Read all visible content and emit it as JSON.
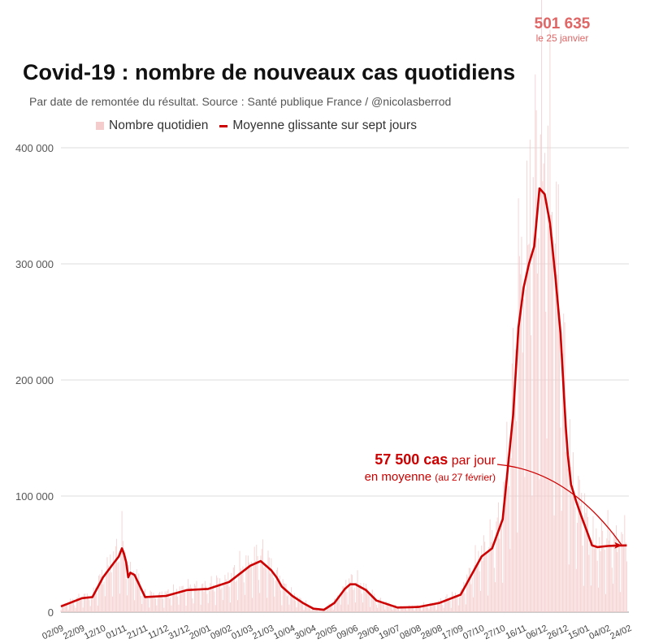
{
  "chart_data": {
    "type": "bar+line",
    "title": "Covid-19 : nombre de nouveaux cas quotidiens",
    "subtitle": "Par date de remontée du résultat. Source : Santé publique France / @nicolasberrod",
    "legend": {
      "position": "top",
      "items": [
        {
          "label": "Nombre quotidien",
          "color": "#f4cccc",
          "kind": "bar"
        },
        {
          "label": "Moyenne glissante sur sept jours",
          "color": "#cc0000",
          "kind": "line"
        }
      ]
    },
    "grid": true,
    "y_axis": {
      "ylim": [
        0,
        420000
      ],
      "ticks": [
        0,
        100000,
        200000,
        300000,
        400000
      ],
      "tick_labels": [
        "0",
        "100 000",
        "200 000",
        "300 000",
        "400 000"
      ]
    },
    "x_axis": {
      "tick_labels": [
        "02/09",
        "22/09",
        "12/10",
        "01/11",
        "21/11",
        "11/12",
        "31/12",
        "20/01",
        "09/02",
        "01/03",
        "21/03",
        "10/04",
        "30/04",
        "20/05",
        "09/06",
        "29/06",
        "19/07",
        "08/08",
        "28/08",
        "17/09",
        "07/10",
        "27/10",
        "16/11",
        "06/12",
        "26/12",
        "15/01",
        "04/02",
        "24/02"
      ],
      "tick_step_days": 20
    },
    "series": [
      {
        "name": "Moyenne glissante sur sept jours",
        "kind": "line",
        "color": "#cc0000",
        "x_days": [
          0,
          20,
          30,
          40,
          50,
          55,
          58,
          60,
          62,
          64,
          66,
          70,
          80,
          100,
          120,
          140,
          160,
          180,
          190,
          200,
          205,
          210,
          220,
          230,
          240,
          250,
          260,
          270,
          275,
          280,
          290,
          300,
          320,
          340,
          360,
          380,
          400,
          410,
          420,
          430,
          435,
          440,
          445,
          450,
          455,
          460,
          465,
          470,
          475,
          480,
          482,
          485,
          490,
          495,
          500,
          505,
          510,
          515,
          520,
          525,
          530,
          538
        ],
        "values": [
          5000,
          12000,
          13000,
          30000,
          42000,
          48000,
          55000,
          50000,
          43000,
          30000,
          34000,
          32000,
          13000,
          14000,
          19000,
          20000,
          26000,
          40000,
          44000,
          36000,
          30000,
          22000,
          14000,
          8000,
          3000,
          2000,
          8000,
          20000,
          24000,
          24000,
          19000,
          10000,
          4000,
          4500,
          8000,
          15000,
          48000,
          55000,
          80000,
          170000,
          245000,
          280000,
          300000,
          315000,
          365000,
          360000,
          335000,
          290000,
          240000,
          160000,
          135000,
          110000,
          95000,
          82000,
          70000,
          57500,
          56000,
          56500,
          57000,
          57200,
          57400,
          57500
        ]
      },
      {
        "name": "Nombre quotidien",
        "kind": "bar",
        "color": "#f4cccc",
        "note": "daily values fluctuate around the seven-day average; peak",
        "peak": {
          "value": 501635,
          "date": "le 25 janvier"
        }
      }
    ],
    "annotations": [
      {
        "value_label": "501 635",
        "date_label": "le 25 janvier"
      },
      {
        "text_bold": "57 500 cas",
        "text_rest": " par jour",
        "line2": "en moyenne",
        "line2_small": "(au 27 février)"
      }
    ]
  }
}
